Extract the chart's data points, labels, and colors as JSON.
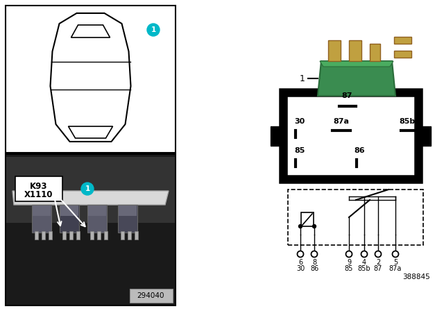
{
  "bg_color": "#ffffff",
  "teal_color": "#00b8c8",
  "badge_number_photo": "294040",
  "badge_number_ref": "388845",
  "callout_label": "1",
  "k93_label": "K93\nX1110",
  "relay_box_labels": {
    "87": "87",
    "30": "30",
    "87a": "87a",
    "85b": "85b",
    "85": "85",
    "86": "86"
  },
  "pin_labels_row1": [
    "6",
    "8",
    "9",
    "4",
    "2",
    "5"
  ],
  "pin_labels_row2": [
    "30",
    "86",
    "85",
    "85b",
    "87",
    "87a"
  ],
  "green_relay": "#3a8c50",
  "green_relay_dark": "#2a6c3a",
  "green_relay_light": "#4aac60"
}
